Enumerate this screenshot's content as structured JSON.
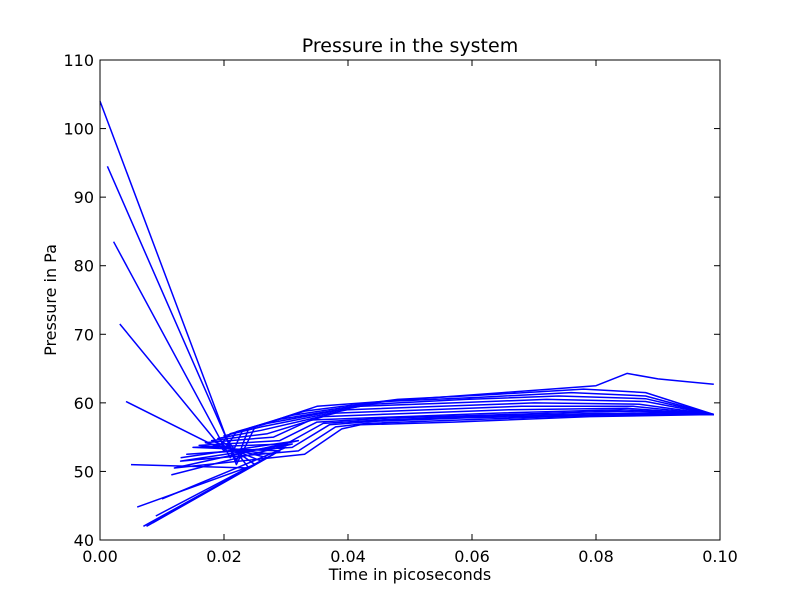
{
  "chart_data": {
    "type": "line",
    "title": "Pressure in the system",
    "xlabel": "Time in picoseconds",
    "ylabel": "Pressure in Pa",
    "xlim": [
      0.0,
      0.1
    ],
    "ylim": [
      40,
      110
    ],
    "xticks": [
      "0.00",
      "0.02",
      "0.04",
      "0.06",
      "0.08",
      "0.10"
    ],
    "yticks": [
      "40",
      "50",
      "60",
      "70",
      "80",
      "90",
      "100",
      "110"
    ],
    "grid": false,
    "legend": "none",
    "line_color": "#0000ff",
    "series": [
      {
        "x": [
          0.0,
          0.022,
          0.025,
          0.035,
          0.05,
          0.065,
          0.08,
          0.085,
          0.09,
          0.099
        ],
        "y": [
          104,
          51,
          56.5,
          59.5,
          60.5,
          61.5,
          62.5,
          64.3,
          63.5,
          62.7
        ]
      },
      {
        "x": [
          0.0012,
          0.022,
          0.024,
          0.033,
          0.048,
          0.063,
          0.078,
          0.088,
          0.099
        ],
        "y": [
          94.5,
          51.5,
          56.3,
          58.8,
          60.5,
          61.2,
          62.0,
          61.5,
          58.3
        ]
      },
      {
        "x": [
          0.0022,
          0.021,
          0.023,
          0.031,
          0.046,
          0.061,
          0.076,
          0.088,
          0.099
        ],
        "y": [
          83.5,
          52.0,
          56.0,
          58.2,
          60.2,
          60.8,
          61.5,
          61.0,
          58.3
        ]
      },
      {
        "x": [
          0.0032,
          0.02,
          0.022,
          0.029,
          0.044,
          0.059,
          0.074,
          0.088,
          0.099
        ],
        "y": [
          71.5,
          53.0,
          55.8,
          57.6,
          59.8,
          60.5,
          61.0,
          60.6,
          58.3
        ]
      },
      {
        "x": [
          0.0042,
          0.019,
          0.021,
          0.027,
          0.042,
          0.057,
          0.072,
          0.088,
          0.099
        ],
        "y": [
          60.2,
          53.5,
          55.5,
          57.0,
          59.5,
          60.0,
          60.5,
          60.2,
          58.3
        ]
      },
      {
        "x": [
          0.005,
          0.024,
          0.02,
          0.026,
          0.04,
          0.055,
          0.07,
          0.087,
          0.099
        ],
        "y": [
          51.0,
          50.5,
          55.2,
          56.5,
          59.0,
          59.5,
          60.0,
          59.8,
          58.3
        ]
      },
      {
        "x": [
          0.006,
          0.025,
          0.019,
          0.026,
          0.038,
          0.053,
          0.068,
          0.086,
          0.099
        ],
        "y": [
          44.8,
          51.0,
          54.8,
          56.0,
          58.5,
          59.0,
          59.5,
          59.5,
          58.3
        ]
      },
      {
        "x": [
          0.007,
          0.026,
          0.018,
          0.027,
          0.036,
          0.051,
          0.066,
          0.085,
          0.099
        ],
        "y": [
          42.0,
          51.5,
          54.5,
          55.5,
          58.0,
          58.5,
          59.0,
          59.2,
          58.3
        ]
      },
      {
        "x": [
          0.0075,
          0.027,
          0.017,
          0.028,
          0.034,
          0.049,
          0.064,
          0.084,
          0.099
        ],
        "y": [
          42.0,
          52.0,
          54.2,
          55.0,
          57.5,
          58.0,
          58.5,
          59.0,
          58.3
        ]
      },
      {
        "x": [
          0.0085,
          0.028,
          0.016,
          0.029,
          0.035,
          0.047,
          0.062,
          0.083,
          0.099
        ],
        "y": [
          42.5,
          52.5,
          53.8,
          54.5,
          57.2,
          57.8,
          58.2,
          58.8,
          58.3
        ]
      },
      {
        "x": [
          0.009,
          0.029,
          0.015,
          0.03,
          0.036,
          0.045,
          0.06,
          0.082,
          0.099
        ],
        "y": [
          43.5,
          53.0,
          53.5,
          54.0,
          57.0,
          57.5,
          58.0,
          58.5,
          58.3
        ]
      },
      {
        "x": [
          0.01,
          0.03,
          0.014,
          0.031,
          0.037,
          0.044,
          0.059,
          0.081,
          0.099
        ],
        "y": [
          46.0,
          53.5,
          52.5,
          53.5,
          56.8,
          57.3,
          57.8,
          58.3,
          58.3
        ]
      },
      {
        "x": [
          0.0115,
          0.031,
          0.013,
          0.032,
          0.038,
          0.043,
          0.058,
          0.08,
          0.099
        ],
        "y": [
          49.5,
          54.0,
          51.5,
          53.0,
          56.5,
          57.0,
          57.5,
          58.2,
          58.3
        ]
      },
      {
        "x": [
          0.013,
          0.032,
          0.012,
          0.033,
          0.039,
          0.042,
          0.057,
          0.079,
          0.099
        ],
        "y": [
          52.0,
          54.5,
          50.5,
          52.5,
          56.2,
          56.8,
          57.2,
          58.0,
          58.3
        ]
      }
    ]
  }
}
